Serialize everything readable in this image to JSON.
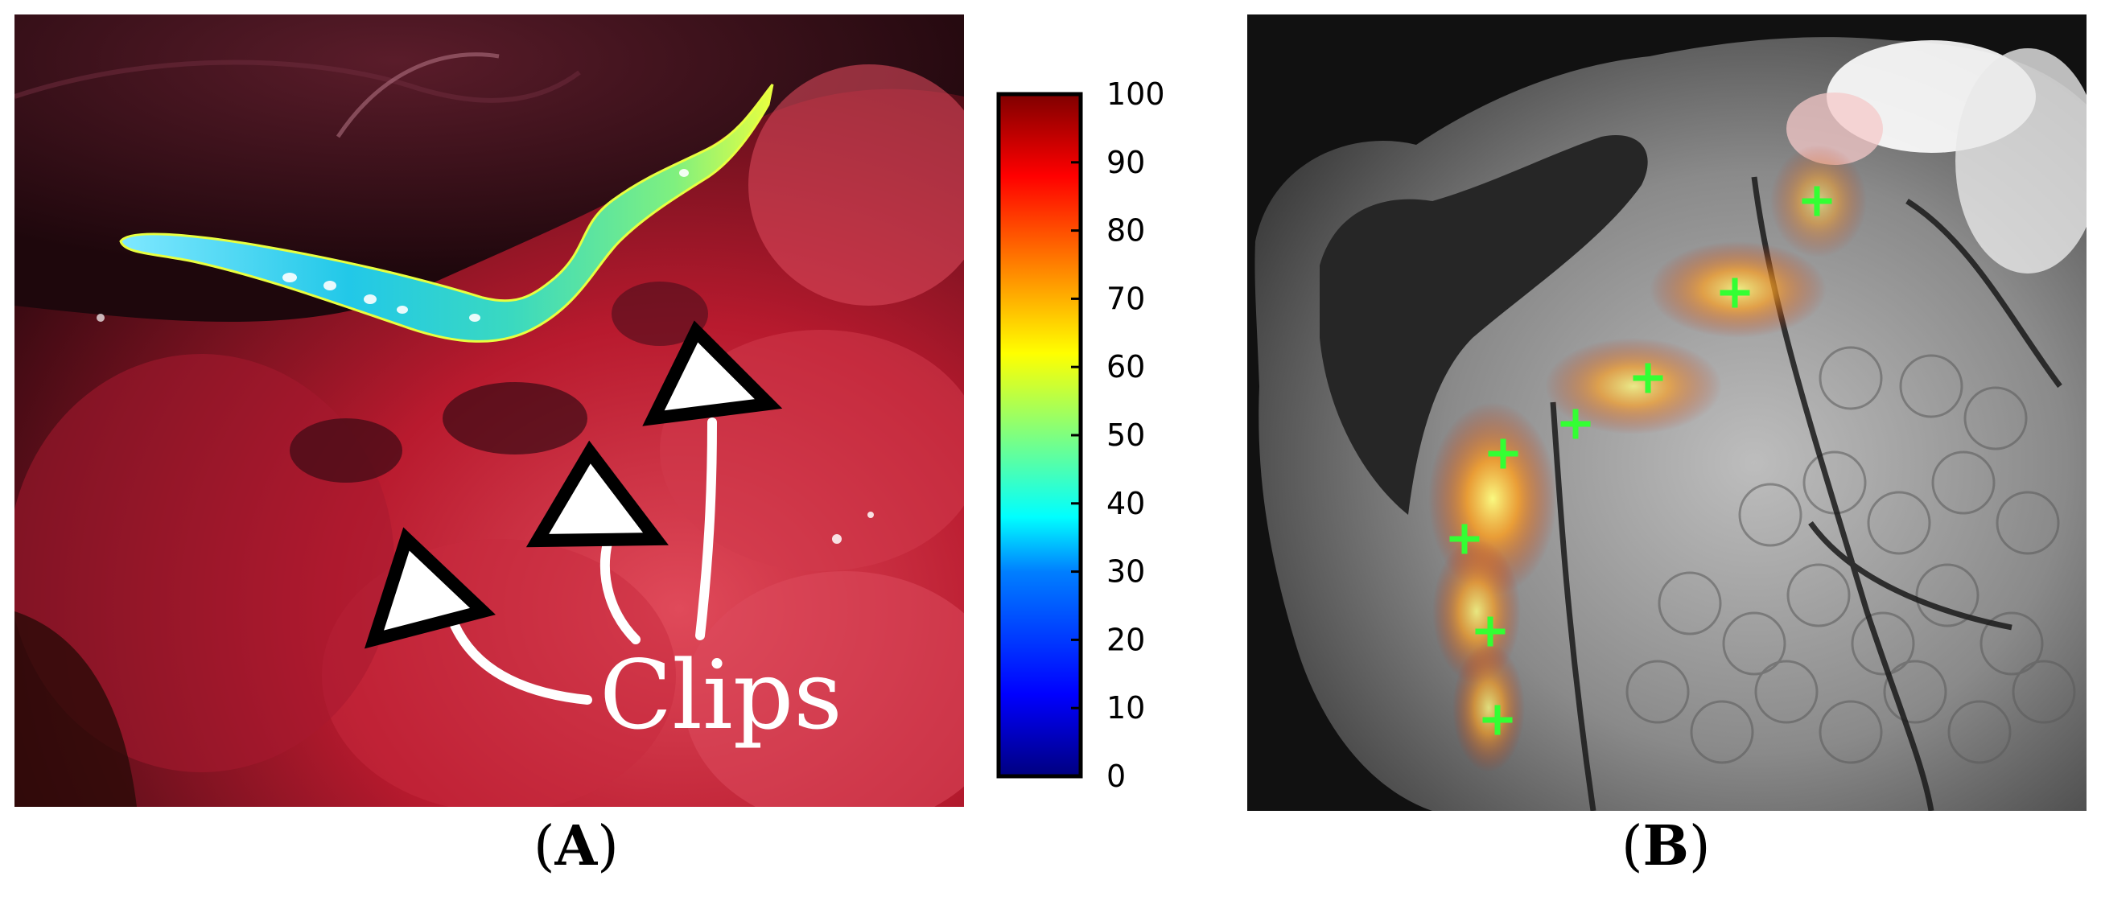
{
  "panels": {
    "a": {
      "caption_open": "(",
      "caption_letter": "A",
      "caption_close": ")",
      "annotation_label": "Clips",
      "colorbar": {
        "ticks": [
          "0",
          "10",
          "20",
          "30",
          "40",
          "50",
          "60",
          "70",
          "80",
          "90",
          "100"
        ],
        "colormap": [
          "#00007f",
          "#0000ff",
          "#007fff",
          "#00ffff",
          "#7fff7f",
          "#ffff00",
          "#ff7f00",
          "#ff0000",
          "#7f0000"
        ]
      }
    },
    "b": {
      "caption_open": "(",
      "caption_letter": "B",
      "caption_close": ")"
    }
  },
  "colors": {
    "tissue_red": "#b81a2e",
    "dark_background": "#1a0a0a",
    "marker_green": "#33ff33",
    "annotation_white": "#ffffff",
    "annotation_outline": "#000000"
  }
}
